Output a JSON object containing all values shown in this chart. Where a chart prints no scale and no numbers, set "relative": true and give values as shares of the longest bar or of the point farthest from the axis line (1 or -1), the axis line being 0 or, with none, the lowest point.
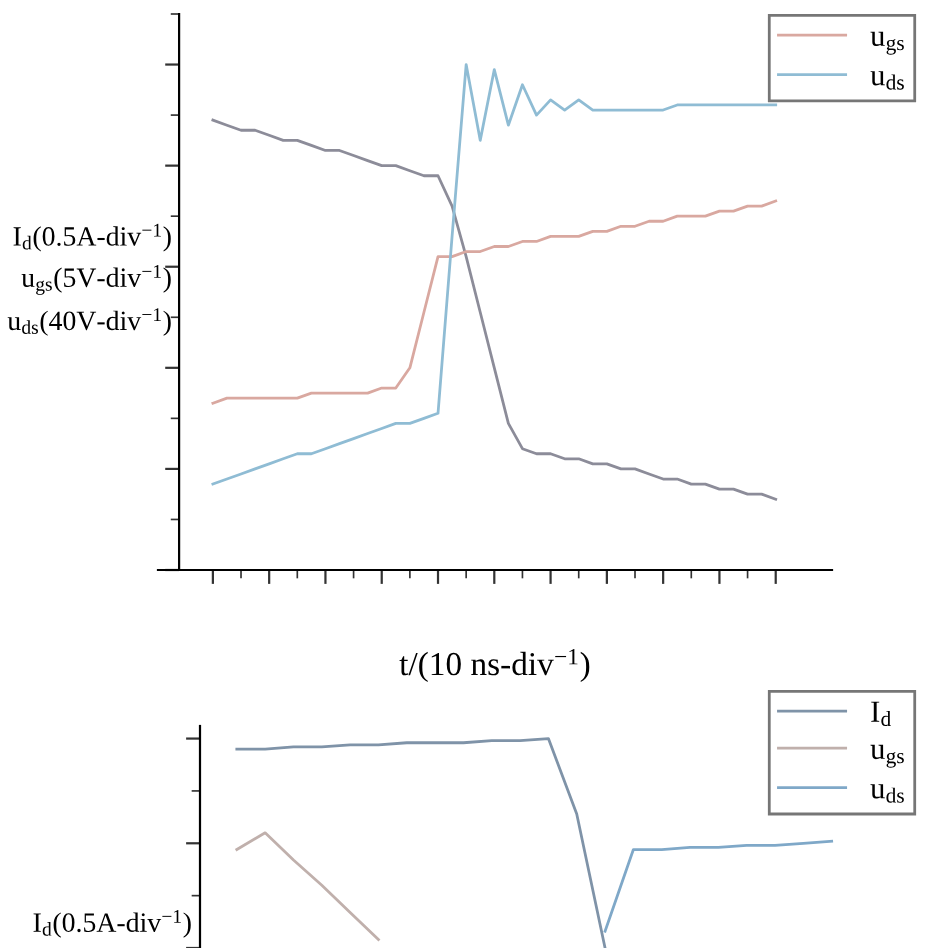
{
  "chart_data": [
    {
      "type": "line",
      "relative": true,
      "tick_labels": false,
      "legend": "top right",
      "grid": false,
      "xlabel": "t/(10 ns-div$^{−1}$)",
      "ylabel": "I$_{d}$(0.5A-div$^{−1}$)\nu$_{gs}$(5V-div$^{−1}$)\nu$_{ds}$(40V-div$^{−1}$)",
      "categories": [
        null,
        null,
        null,
        null,
        null,
        null,
        null,
        null,
        null,
        null,
        null,
        null,
        null,
        null,
        null,
        null,
        null,
        null,
        null,
        null,
        null,
        null,
        null,
        null,
        null,
        null,
        null,
        null,
        null,
        null,
        null,
        null,
        null,
        null,
        null,
        null,
        null,
        null,
        null,
        null,
        null
      ],
      "series": [
        {
          "color": "#8c8c99",
          "values": [
            0.89,
            0.88,
            0.87,
            0.87,
            0.86,
            0.85,
            0.85,
            0.84,
            0.83,
            0.83,
            0.82,
            0.81,
            0.8,
            0.8,
            0.79,
            0.78,
            0.78,
            0.72,
            0.62,
            0.51,
            0.4,
            0.29,
            0.24,
            0.23,
            0.23,
            0.22,
            0.22,
            0.21,
            0.21,
            0.2,
            0.2,
            0.19,
            0.18,
            0.18,
            0.17,
            0.17,
            0.16,
            0.16,
            0.15,
            0.15,
            0.14
          ]
        },
        {
          "name": "u$_{gs}$",
          "color": "#d9a8a0",
          "values": [
            0.33,
            0.34,
            0.34,
            0.34,
            0.34,
            0.34,
            0.34,
            0.35,
            0.35,
            0.35,
            0.35,
            0.35,
            0.36,
            0.36,
            0.4,
            0.51,
            0.62,
            0.62,
            0.63,
            0.63,
            0.64,
            0.64,
            0.65,
            0.65,
            0.66,
            0.66,
            0.66,
            0.67,
            0.67,
            0.68,
            0.68,
            0.69,
            0.69,
            0.7,
            0.7,
            0.7,
            0.71,
            0.71,
            0.72,
            0.72,
            0.73
          ]
        },
        {
          "name": "u$_{ds}$",
          "color": "#8fbcd4",
          "values": [
            0.17,
            0.18,
            0.19,
            0.2,
            0.21,
            0.22,
            0.23,
            0.23,
            0.24,
            0.25,
            0.26,
            0.27,
            0.28,
            0.29,
            0.29,
            0.3,
            0.31,
            0.66,
            1,
            0.85,
            0.99,
            0.88,
            0.96,
            0.9,
            0.93,
            0.91,
            0.93,
            0.91,
            0.91,
            0.91,
            0.91,
            0.91,
            0.91,
            0.92,
            0.92,
            0.92,
            0.92,
            0.92,
            0.92,
            0.92,
            0.92
          ]
        }
      ]
    },
    {
      "type": "line",
      "relative": true,
      "tick_labels": false,
      "legend": "top right",
      "grid": false,
      "ylabel": "I$_{d}$(0.5A-div$^{−1}$)",
      "categories": [
        null,
        null,
        null,
        null,
        null,
        null,
        null,
        null,
        null,
        null,
        null,
        null,
        null,
        null,
        null,
        null,
        null,
        null,
        null,
        null,
        null,
        null
      ],
      "series": [
        {
          "name": "I$_{d}$",
          "color": "#7f93a8",
          "values": [
            0.95,
            0.95,
            0.96,
            0.96,
            0.97,
            0.97,
            0.98,
            0.98,
            0.98,
            0.99,
            0.99,
            1,
            0.64,
            0,
            null,
            null,
            null,
            null,
            null,
            null,
            null,
            null
          ]
        },
        {
          "name": "u$_{gs}$",
          "color": "#c0b0ac",
          "values": [
            0.47,
            0.55,
            0.42,
            0.3,
            0.17,
            0.04,
            null,
            null,
            null,
            null,
            null,
            null,
            null,
            null,
            null,
            null,
            null,
            null,
            null,
            null,
            null,
            null
          ]
        },
        {
          "name": "u$_{ds}$",
          "color": "#7fa8c8",
          "values": [
            null,
            null,
            null,
            null,
            null,
            null,
            null,
            null,
            null,
            null,
            null,
            null,
            null,
            0.08,
            0.47,
            0.47,
            0.48,
            0.48,
            0.49,
            0.49,
            0.5,
            0.51
          ]
        }
      ]
    }
  ]
}
